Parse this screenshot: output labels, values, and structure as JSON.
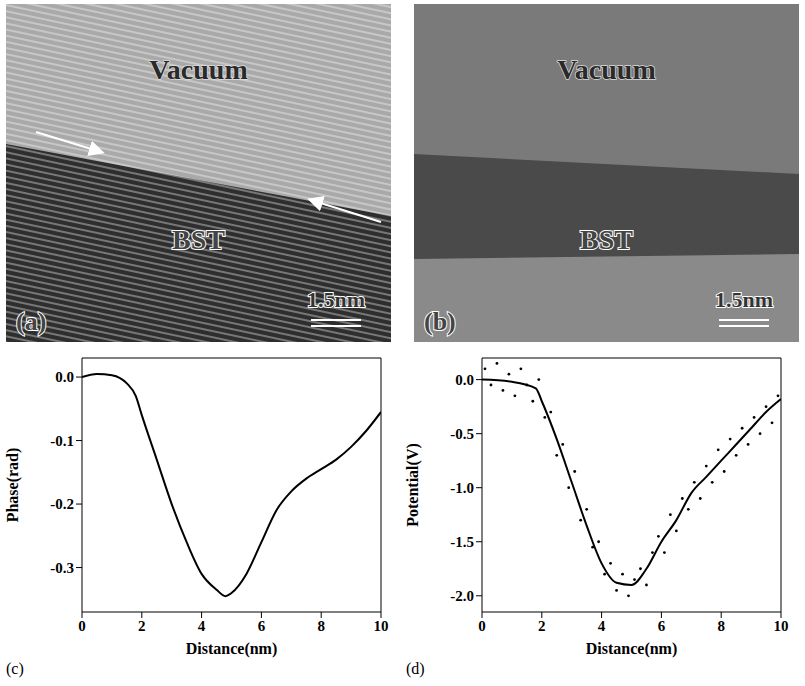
{
  "images": [
    {
      "panel": "(a)",
      "regions": [
        "Vacuum",
        "BST"
      ],
      "scale_bar": "1.5nm"
    },
    {
      "panel": "(b)",
      "regions": [
        "Vacuum",
        "BST"
      ],
      "scale_bar": "1.5nm"
    }
  ],
  "chart_data": [
    {
      "panel": "(c)",
      "type": "line",
      "x_label": "Distance(nm)",
      "y_label": "Phase(rad)",
      "color": "#000000",
      "x": [
        0,
        0.5,
        1,
        1.5,
        1.8,
        2,
        2.5,
        3,
        3.5,
        4,
        4.5,
        4.8,
        5,
        5.5,
        6,
        6.5,
        7,
        7.5,
        8,
        8.5,
        9,
        9.5,
        10
      ],
      "values": [
        0,
        0.005,
        0.003,
        -0.01,
        -0.03,
        -0.06,
        -0.13,
        -0.2,
        -0.26,
        -0.31,
        -0.335,
        -0.345,
        -0.34,
        -0.31,
        -0.26,
        -0.21,
        -0.18,
        -0.16,
        -0.145,
        -0.13,
        -0.11,
        -0.085,
        -0.055
      ],
      "xlim": [
        0,
        10
      ],
      "xticks": [
        0,
        2,
        4,
        6,
        8,
        10
      ],
      "ylim": [
        -0.37,
        0.03
      ],
      "yticks": [
        {
          "value": 0,
          "label": "0.0"
        },
        -0.1,
        -0.2,
        -0.3
      ]
    },
    {
      "panel": "(d)",
      "type": "line",
      "x_label": "Distance(nm)",
      "y_label": "Potential(V)",
      "color": "#000000",
      "x": [
        0,
        1,
        1.8,
        2,
        2.5,
        3,
        3.5,
        4,
        4.5,
        5,
        5.5,
        6,
        6.5,
        7,
        7.5,
        8,
        8.5,
        9,
        9.5,
        10
      ],
      "values": [
        0,
        -0.02,
        -0.08,
        -0.2,
        -0.55,
        -0.95,
        -1.35,
        -1.7,
        -1.88,
        -1.9,
        -1.75,
        -1.5,
        -1.3,
        -1.05,
        -0.9,
        -0.75,
        -0.6,
        -0.45,
        -0.3,
        -0.18
      ],
      "scatter_points": {
        "x": [
          0.1,
          0.3,
          0.5,
          0.7,
          0.9,
          1.1,
          1.3,
          1.5,
          1.7,
          1.9,
          2.1,
          2.3,
          2.5,
          2.7,
          2.9,
          3.1,
          3.3,
          3.5,
          3.7,
          3.9,
          4.1,
          4.3,
          4.5,
          4.7,
          4.9,
          5.1,
          5.3,
          5.5,
          5.7,
          5.9,
          6.1,
          6.3,
          6.5,
          6.7,
          6.9,
          7.1,
          7.3,
          7.5,
          7.7,
          7.9,
          8.1,
          8.3,
          8.5,
          8.7,
          8.9,
          9.1,
          9.3,
          9.5,
          9.7,
          9.9
        ],
        "y": [
          0.1,
          -0.05,
          0.15,
          -0.1,
          0.05,
          -0.15,
          0.1,
          -0.05,
          -0.2,
          0.0,
          -0.35,
          -0.3,
          -0.7,
          -0.6,
          -1.0,
          -0.85,
          -1.3,
          -1.2,
          -1.55,
          -1.5,
          -1.8,
          -1.7,
          -1.95,
          -1.8,
          -2.0,
          -1.85,
          -1.75,
          -1.9,
          -1.6,
          -1.45,
          -1.6,
          -1.25,
          -1.4,
          -1.1,
          -1.2,
          -0.95,
          -1.1,
          -0.8,
          -0.95,
          -0.65,
          -0.85,
          -0.55,
          -0.7,
          -0.45,
          -0.6,
          -0.35,
          -0.5,
          -0.25,
          -0.4,
          -0.15
        ]
      },
      "xlim": [
        0,
        10
      ],
      "xticks": [
        0,
        2,
        4,
        6,
        8,
        10
      ],
      "ylim": [
        -2.15,
        0.2
      ],
      "yticks": [
        {
          "value": 0,
          "label": "0.0"
        },
        -0.5,
        {
          "value": -1,
          "label": "-1.0"
        },
        -1.5,
        {
          "value": -2,
          "label": "-2.0"
        }
      ]
    }
  ]
}
